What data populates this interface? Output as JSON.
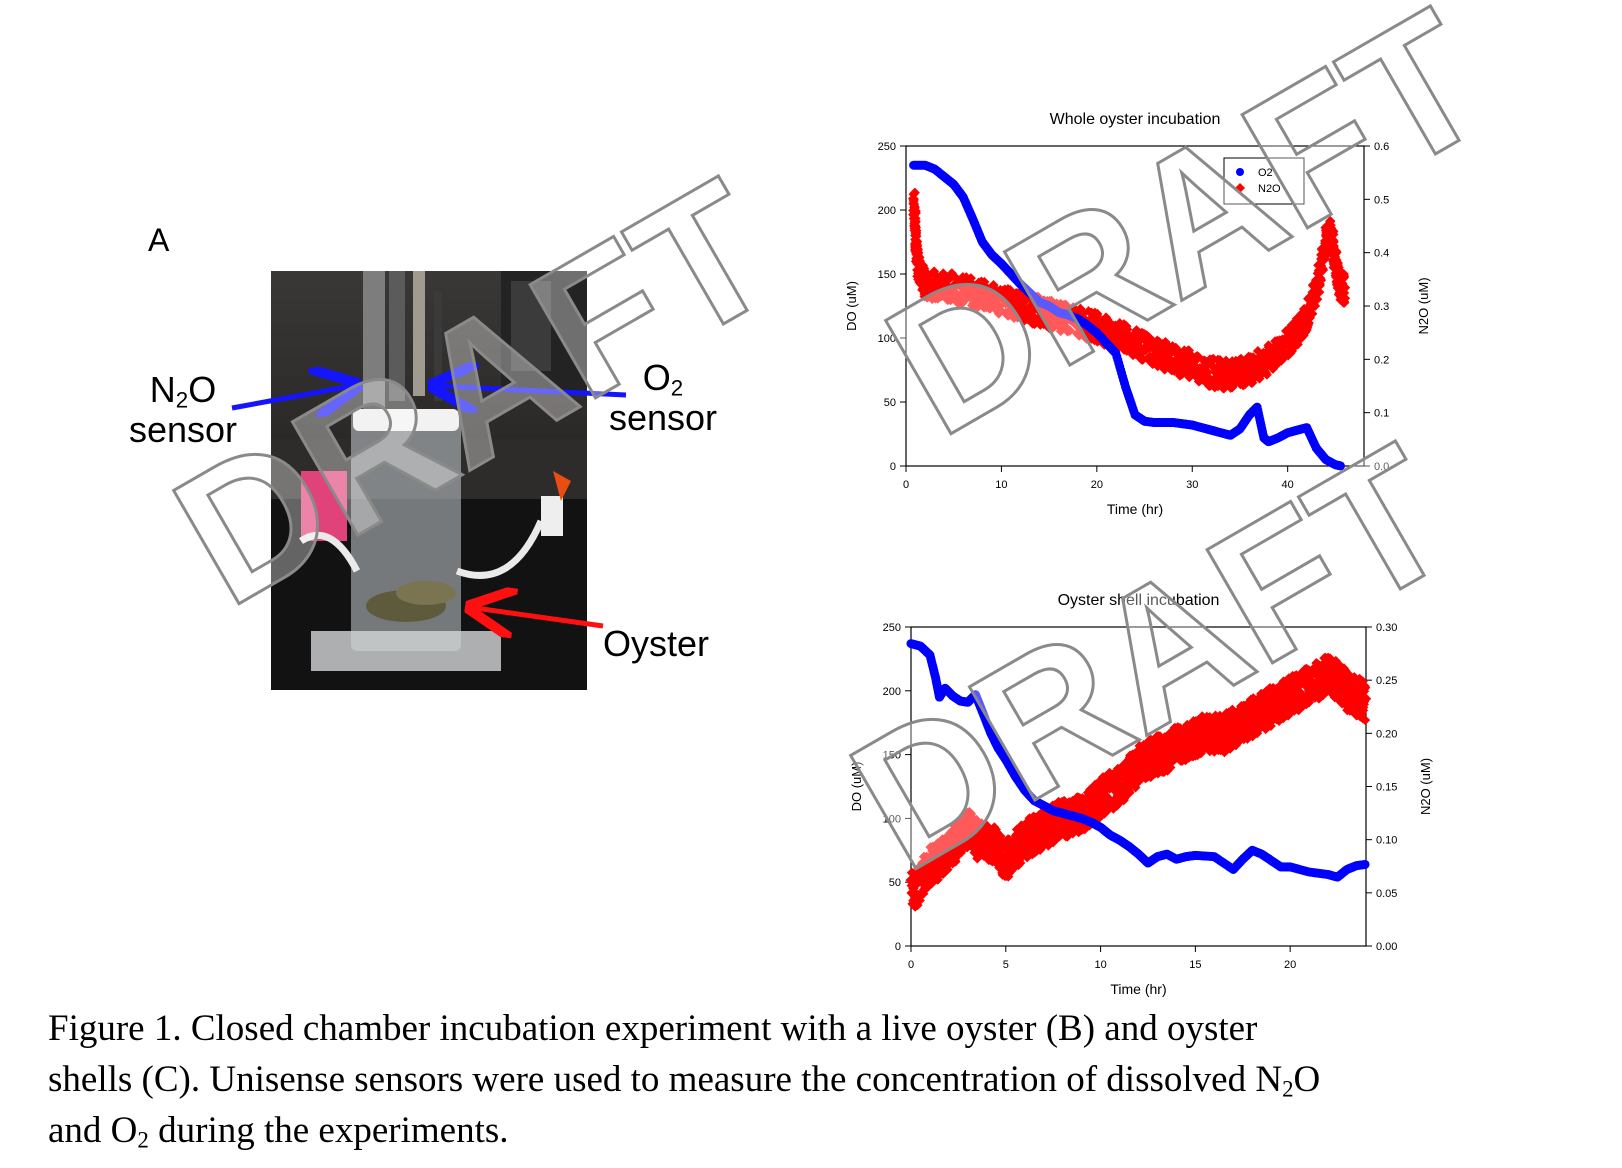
{
  "panel_a": {
    "letter": "A",
    "labels": {
      "n2o_main": "N",
      "n2o_sub": "2",
      "n2o_rest": "O",
      "n2o_word": "sensor",
      "o2_main": "O",
      "o2_sub": "2",
      "o2_word": "sensor",
      "oyster": "Oyster"
    },
    "arrow_colors": {
      "n2o": "#1414ff",
      "o2": "#1414ff",
      "oyster": "#ff1010"
    }
  },
  "watermark": "DRAFT",
  "chart_data": [
    {
      "type": "scatter",
      "title": "Whole oyster incubation",
      "xlabel": "Time (hr)",
      "ylabel": "DO (uM)",
      "y2label": "N2O (uM)",
      "xlim": [
        0,
        48
      ],
      "ylim": [
        0,
        250
      ],
      "y2lim": [
        0,
        0.6
      ],
      "xticks": [
        "0",
        "10",
        "20",
        "30",
        "40"
      ],
      "yticks": [
        "0",
        "50",
        "100",
        "150",
        "200",
        "250"
      ],
      "y2ticks": [
        "0.0",
        "0.1",
        "0.2",
        "0.3",
        "0.4",
        "0.5",
        "0.6"
      ],
      "legend_position": "top-right",
      "series": [
        {
          "name": "O2",
          "axis": "left",
          "color": "#0000ff",
          "marker": "circle",
          "points": [
            [
              0.8,
              235
            ],
            [
              2,
              235
            ],
            [
              3,
              232
            ],
            [
              4,
              226
            ],
            [
              5,
              220
            ],
            [
              6,
              210
            ],
            [
              7,
              193
            ],
            [
              8,
              175
            ],
            [
              9,
              165
            ],
            [
              10,
              158
            ],
            [
              11,
              150
            ],
            [
              12,
              142
            ],
            [
              13,
              135
            ],
            [
              14,
              128
            ],
            [
              15,
              125
            ],
            [
              16,
              120
            ],
            [
              17,
              118
            ],
            [
              18,
              115
            ],
            [
              19,
              110
            ],
            [
              20,
              104
            ],
            [
              21,
              96
            ],
            [
              22,
              88
            ],
            [
              23,
              62
            ],
            [
              24,
              40
            ],
            [
              25,
              35
            ],
            [
              26,
              34
            ],
            [
              27,
              34
            ],
            [
              28,
              34
            ],
            [
              29,
              33
            ],
            [
              30,
              32
            ],
            [
              31,
              30
            ],
            [
              32,
              28
            ],
            [
              33,
              26
            ],
            [
              34,
              24
            ],
            [
              35,
              29
            ],
            [
              36,
              40
            ],
            [
              36.8,
              46
            ],
            [
              37.5,
              22
            ],
            [
              38,
              19
            ],
            [
              39,
              22
            ],
            [
              40,
              26
            ],
            [
              41,
              28
            ],
            [
              42,
              30
            ],
            [
              43,
              14
            ],
            [
              44,
              5
            ],
            [
              45,
              1
            ],
            [
              45.6,
              0
            ]
          ]
        },
        {
          "name": "N2O",
          "axis": "right",
          "color": "#ff0000",
          "marker": "diamond",
          "points": [
            [
              0.8,
              0.5
            ],
            [
              1,
              0.44
            ],
            [
              1.2,
              0.38
            ],
            [
              2,
              0.34
            ],
            [
              4,
              0.34
            ],
            [
              6,
              0.33
            ],
            [
              8,
              0.32
            ],
            [
              10,
              0.31
            ],
            [
              12,
              0.3
            ],
            [
              14,
              0.29
            ],
            [
              16,
              0.28
            ],
            [
              18,
              0.27
            ],
            [
              20,
              0.26
            ],
            [
              22,
              0.245
            ],
            [
              24,
              0.23
            ],
            [
              26,
              0.215
            ],
            [
              28,
              0.2
            ],
            [
              30,
              0.19
            ],
            [
              32,
              0.175
            ],
            [
              34,
              0.17
            ],
            [
              36,
              0.18
            ],
            [
              38,
              0.2
            ],
            [
              40,
              0.23
            ],
            [
              41,
              0.25
            ],
            [
              42,
              0.28
            ],
            [
              43,
              0.33
            ],
            [
              44,
              0.42
            ],
            [
              44.5,
              0.44
            ],
            [
              45,
              0.38
            ],
            [
              45.5,
              0.34
            ],
            [
              46,
              0.33
            ]
          ]
        }
      ]
    },
    {
      "type": "scatter",
      "title": "Oyster shell incubation",
      "xlabel": "Time (hr)",
      "ylabel": "DO (uM)",
      "y2label": "N2O (uM)",
      "xlim": [
        0,
        24
      ],
      "ylim": [
        0,
        250
      ],
      "y2lim": [
        0,
        0.3
      ],
      "xticks": [
        "0",
        "5",
        "10",
        "15",
        "20"
      ],
      "yticks": [
        "0",
        "50",
        "100",
        "150",
        "200",
        "250"
      ],
      "y2ticks": [
        "0.00",
        "0.05",
        "0.10",
        "0.15",
        "0.20",
        "0.25",
        "0.30"
      ],
      "series": [
        {
          "name": "O2",
          "axis": "left",
          "color": "#0000ff",
          "marker": "circle",
          "points": [
            [
              0,
              237
            ],
            [
              0.5,
              235
            ],
            [
              1,
              228
            ],
            [
              1.3,
              210
            ],
            [
              1.5,
              195
            ],
            [
              1.8,
              202
            ],
            [
              2.2,
              196
            ],
            [
              2.6,
              192
            ],
            [
              3,
              191
            ],
            [
              3.4,
              197
            ],
            [
              3.7,
              186
            ],
            [
              4.2,
              167
            ],
            [
              4.6,
              155
            ],
            [
              5,
              146
            ],
            [
              5.5,
              133
            ],
            [
              6,
              122
            ],
            [
              6.5,
              114
            ],
            [
              7,
              110
            ],
            [
              7.5,
              106
            ],
            [
              8,
              104
            ],
            [
              8.5,
              102
            ],
            [
              9,
              100
            ],
            [
              9.5,
              97
            ],
            [
              10,
              93
            ],
            [
              10.5,
              87
            ],
            [
              11,
              83
            ],
            [
              11.5,
              78
            ],
            [
              12,
              72
            ],
            [
              12.5,
              65
            ],
            [
              13,
              70
            ],
            [
              13.5,
              72
            ],
            [
              14,
              68
            ],
            [
              14.5,
              70
            ],
            [
              15,
              71
            ],
            [
              16,
              70
            ],
            [
              17,
              60
            ],
            [
              17.5,
              68
            ],
            [
              18,
              75
            ],
            [
              18.5,
              72
            ],
            [
              19,
              67
            ],
            [
              19.5,
              62
            ],
            [
              20,
              62
            ],
            [
              21,
              58
            ],
            [
              22,
              56
            ],
            [
              22.5,
              54
            ],
            [
              23,
              60
            ],
            [
              23.5,
              63
            ],
            [
              24,
              64
            ]
          ]
        },
        {
          "name": "N2O",
          "axis": "right",
          "color": "#ff0000",
          "marker": "diamond",
          "points": [
            [
              0,
              0.05
            ],
            [
              0.5,
              0.06
            ],
            [
              1,
              0.075
            ],
            [
              1.5,
              0.08
            ],
            [
              2,
              0.09
            ],
            [
              2.5,
              0.1
            ],
            [
              3,
              0.11
            ],
            [
              3.5,
              0.1
            ],
            [
              4,
              0.1
            ],
            [
              4.5,
              0.095
            ],
            [
              5,
              0.08
            ],
            [
              5.5,
              0.09
            ],
            [
              6,
              0.1
            ],
            [
              6.5,
              0.105
            ],
            [
              7,
              0.11
            ],
            [
              7.5,
              0.115
            ],
            [
              8,
              0.12
            ],
            [
              8.5,
              0.12
            ],
            [
              9,
              0.125
            ],
            [
              9.5,
              0.13
            ],
            [
              10,
              0.14
            ],
            [
              10.5,
              0.145
            ],
            [
              11,
              0.15
            ],
            [
              11.5,
              0.16
            ],
            [
              12,
              0.17
            ],
            [
              12.5,
              0.175
            ],
            [
              13,
              0.18
            ],
            [
              13.5,
              0.18
            ],
            [
              14,
              0.19
            ],
            [
              14.5,
              0.19
            ],
            [
              15,
              0.195
            ],
            [
              15.5,
              0.2
            ],
            [
              16,
              0.2
            ],
            [
              16.5,
              0.2
            ],
            [
              17,
              0.205
            ],
            [
              17.5,
              0.21
            ],
            [
              18,
              0.215
            ],
            [
              18.5,
              0.22
            ],
            [
              19,
              0.225
            ],
            [
              19.5,
              0.23
            ],
            [
              20,
              0.235
            ],
            [
              20.5,
              0.24
            ],
            [
              21,
              0.245
            ],
            [
              21.5,
              0.25
            ],
            [
              22,
              0.255
            ],
            [
              22.5,
              0.25
            ],
            [
              23,
              0.24
            ],
            [
              23.5,
              0.235
            ],
            [
              24,
              0.23
            ]
          ]
        }
      ]
    }
  ],
  "caption": {
    "line1": "Figure 1. Closed chamber incubation experiment with a live oyster (B) and oyster",
    "line2_a": "shells (C). Unisense sensors were used to measure the concentration of dissolved N",
    "line2_sub": "2",
    "line2_b": "O",
    "line3_a": "and O",
    "line3_sub": "2",
    "line3_b": " during the experiments."
  }
}
